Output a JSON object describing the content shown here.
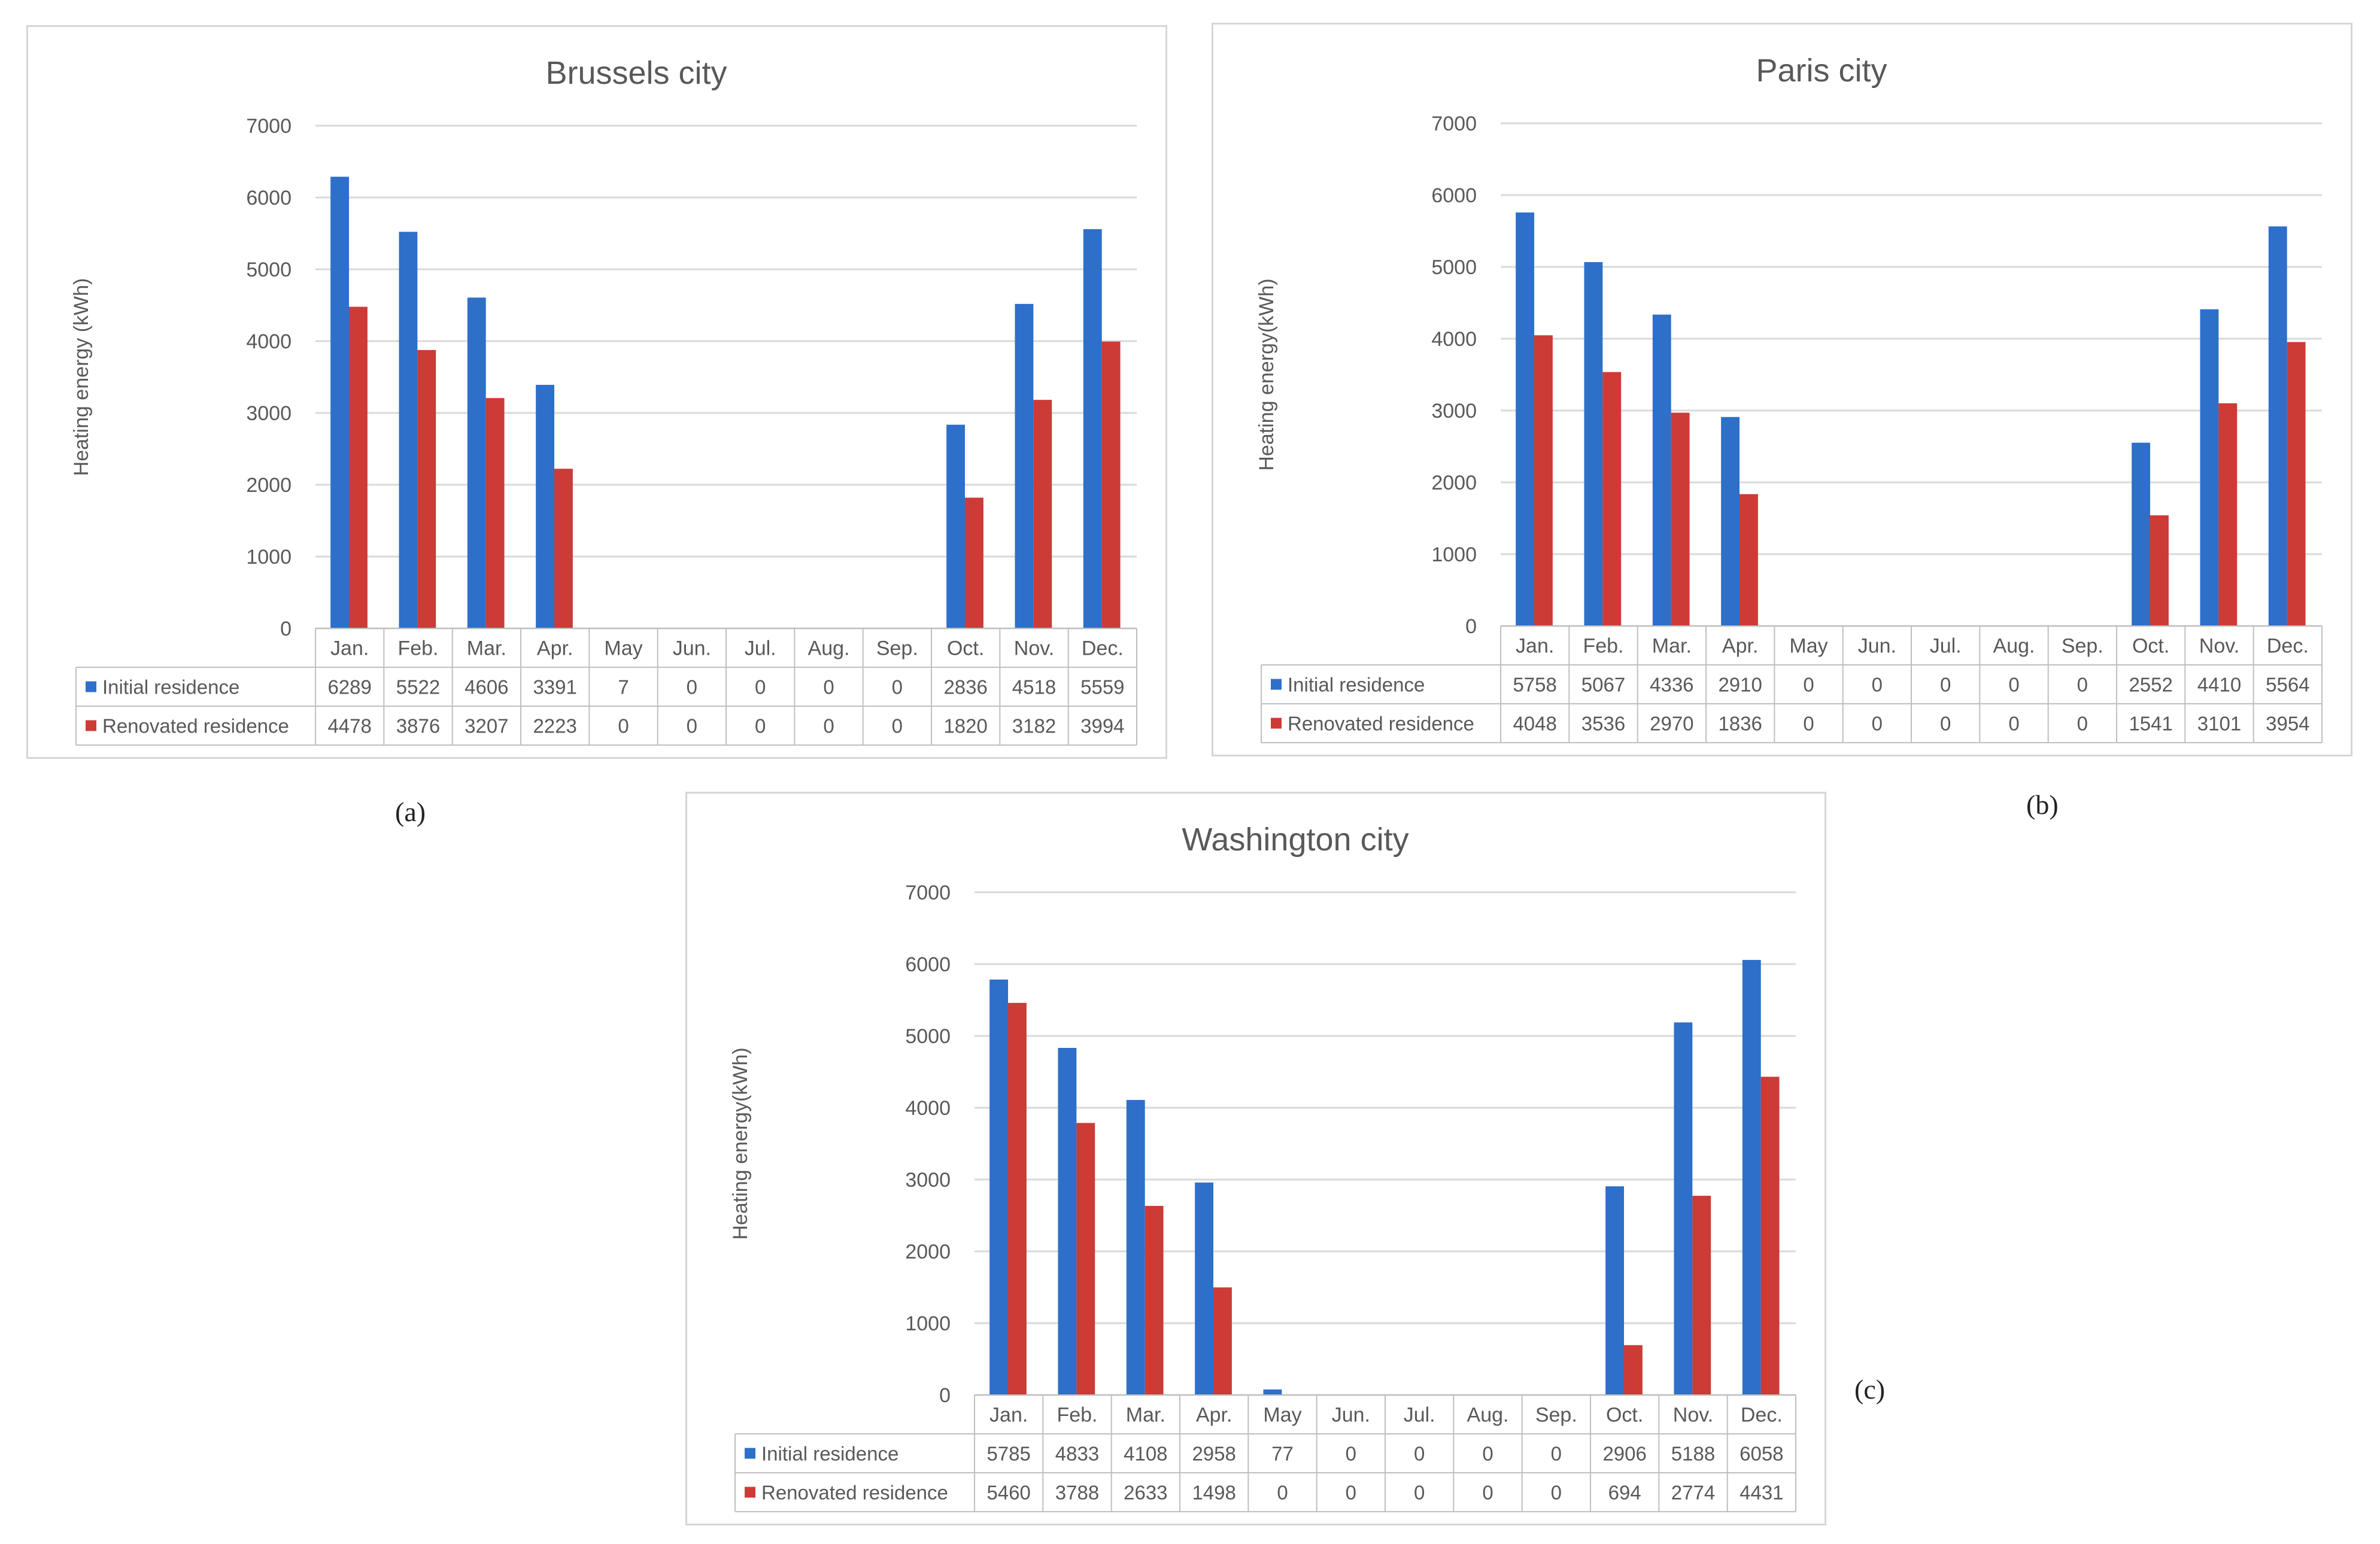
{
  "colors": {
    "initial": "#2E6FC9",
    "renovated": "#CC3B36",
    "grid": "#d9d9d9",
    "table": "#bfbfbf"
  },
  "captions": [
    "(a)",
    "(b)",
    "(c)"
  ],
  "chart_data": [
    {
      "type": "bar",
      "title": "Brussels city",
      "ylabel": "Heating energy (kWh)",
      "xlabel": "",
      "ylim": [
        0,
        7000
      ],
      "yticks": [
        0,
        1000,
        2000,
        3000,
        4000,
        5000,
        6000,
        7000
      ],
      "categories": [
        "Jan.",
        "Feb.",
        "Mar.",
        "Apr.",
        "May",
        "Jun.",
        "Jul.",
        "Aug.",
        "Sep.",
        "Oct.",
        "Nov.",
        "Dec."
      ],
      "series": [
        {
          "name": "Initial residence",
          "values": [
            6289,
            5522,
            4606,
            3391,
            7,
            0,
            0,
            0,
            0,
            2836,
            4518,
            5559
          ]
        },
        {
          "name": "Renovated residence",
          "values": [
            4478,
            3876,
            3207,
            2223,
            0,
            0,
            0,
            0,
            0,
            1820,
            3182,
            3994
          ]
        }
      ]
    },
    {
      "type": "bar",
      "title": "Paris city",
      "ylabel": "Heating energy(kWh)",
      "xlabel": "",
      "ylim": [
        0,
        7000
      ],
      "yticks": [
        0,
        1000,
        2000,
        3000,
        4000,
        5000,
        6000,
        7000
      ],
      "categories": [
        "Jan.",
        "Feb.",
        "Mar.",
        "Apr.",
        "May",
        "Jun.",
        "Jul.",
        "Aug.",
        "Sep.",
        "Oct.",
        "Nov.",
        "Dec."
      ],
      "series": [
        {
          "name": "Initial residence",
          "values": [
            5758,
            5067,
            4336,
            2910,
            0,
            0,
            0,
            0,
            0,
            2552,
            4410,
            5564
          ]
        },
        {
          "name": "Renovated residence",
          "values": [
            4048,
            3536,
            2970,
            1836,
            0,
            0,
            0,
            0,
            0,
            1541,
            3101,
            3954
          ]
        }
      ]
    },
    {
      "type": "bar",
      "title": "Washington city",
      "ylabel": "Heating energy(kWh)",
      "xlabel": "",
      "ylim": [
        0,
        7000
      ],
      "yticks": [
        0,
        1000,
        2000,
        3000,
        4000,
        5000,
        6000,
        7000
      ],
      "categories": [
        "Jan.",
        "Feb.",
        "Mar.",
        "Apr.",
        "May",
        "Jun.",
        "Jul.",
        "Aug.",
        "Sep.",
        "Oct.",
        "Nov.",
        "Dec."
      ],
      "series": [
        {
          "name": "Initial residence",
          "values": [
            5785,
            4833,
            4108,
            2958,
            77,
            0,
            0,
            0,
            0,
            2906,
            5188,
            6058
          ]
        },
        {
          "name": "Renovated residence",
          "values": [
            5460,
            3788,
            2633,
            1498,
            0,
            0,
            0,
            0,
            0,
            694,
            2774,
            4431
          ]
        }
      ]
    }
  ]
}
